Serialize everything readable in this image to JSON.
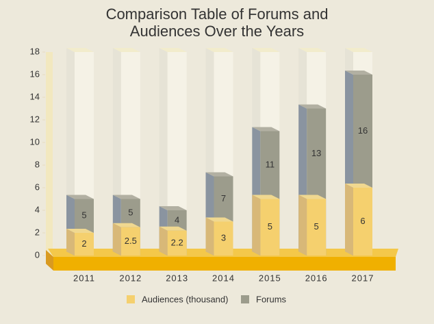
{
  "chart_data": {
    "type": "bar",
    "title": "Comparison Table of Forums and Audiences Over the Years",
    "categories": [
      "2011",
      "2012",
      "2013",
      "2014",
      "2015",
      "2016",
      "2017"
    ],
    "series": [
      {
        "name": "Audiences (thousand)",
        "color": "#f5d06e",
        "values": [
          2,
          2.5,
          2.2,
          3,
          5,
          5,
          6
        ]
      },
      {
        "name": "Forums",
        "color": "#9c9c8c",
        "values": [
          5,
          5,
          4,
          7,
          11,
          13,
          16
        ]
      }
    ],
    "ylim": [
      0,
      18
    ],
    "yticks": [
      0,
      2,
      4,
      6,
      8,
      10,
      12,
      14,
      16,
      18
    ]
  }
}
